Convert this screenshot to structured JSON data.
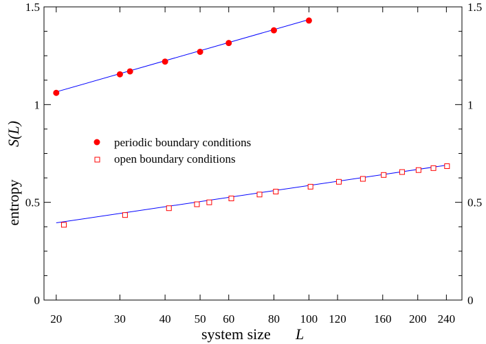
{
  "chart_data": {
    "type": "scatter",
    "x_scale": "log",
    "xlim": [
      18.5,
      265
    ],
    "ylim": [
      0,
      1.5
    ],
    "x_ticks": [
      20,
      30,
      40,
      50,
      60,
      80,
      100,
      120,
      160,
      200,
      240
    ],
    "x_tick_labels": [
      "20",
      "30",
      "40",
      "50",
      "60",
      "80",
      "100",
      "120",
      "160",
      "200",
      "240"
    ],
    "y_ticks": [
      0,
      0.5,
      1,
      1.5
    ],
    "y_tick_labels": [
      "0",
      "0.5",
      "1",
      "1.5"
    ],
    "y_minor_ticks": [
      0.125,
      0.25,
      0.375,
      0.625,
      0.75,
      0.875,
      1.125,
      1.25,
      1.375
    ],
    "xlabel": "system size",
    "xlabel_var": "L",
    "ylabel": "entropy",
    "ylabel_var": "S(L)",
    "grid": false,
    "legend_position": "middle-left",
    "line_color": "#0000ff",
    "marker_color": "#ff0000",
    "series": [
      {
        "name": "periodic boundary conditions",
        "marker": "filled-circle",
        "x": [
          20,
          30,
          32,
          40,
          50,
          60,
          80,
          100
        ],
        "y": [
          1.06,
          1.155,
          1.17,
          1.22,
          1.27,
          1.315,
          1.38,
          1.43
        ],
        "fit": [
          [
            20,
            1.065
          ],
          [
            100,
            1.435
          ]
        ]
      },
      {
        "name": "open boundary conditions",
        "marker": "open-square",
        "x": [
          21,
          31,
          41,
          49,
          53,
          61,
          73,
          81,
          101,
          121,
          141,
          161,
          181,
          201,
          221,
          241
        ],
        "y": [
          0.385,
          0.435,
          0.47,
          0.49,
          0.5,
          0.52,
          0.54,
          0.555,
          0.58,
          0.605,
          0.62,
          0.64,
          0.655,
          0.665,
          0.675,
          0.685
        ],
        "fit": [
          [
            20,
            0.395
          ],
          [
            240,
            0.69
          ]
        ]
      }
    ]
  }
}
